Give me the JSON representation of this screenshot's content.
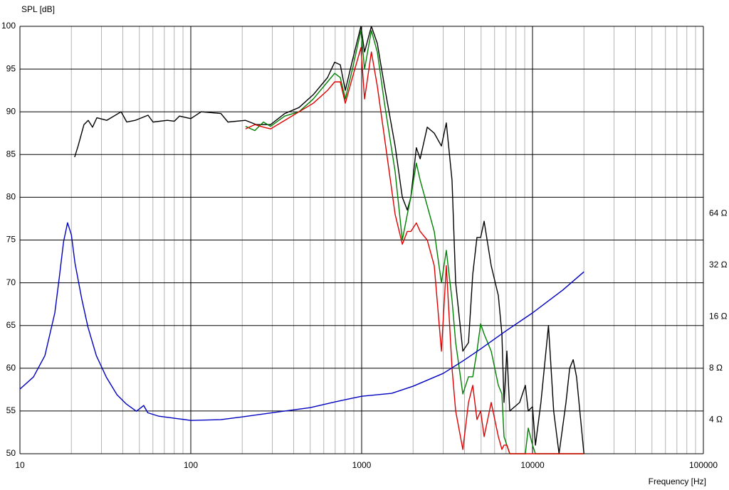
{
  "chart_data": {
    "type": "line",
    "y_label": "SPL [dB]",
    "x_label": "Frequency [Hz]",
    "xscale": "log",
    "xlim": [
      10,
      100000
    ],
    "xticks": [
      10,
      100,
      1000,
      10000,
      100000
    ],
    "ylim": [
      50,
      100
    ],
    "yticks": [
      50,
      55,
      60,
      65,
      70,
      75,
      80,
      85,
      90,
      95,
      100
    ],
    "y2scale": "log",
    "y2lim": [
      2.53,
      792
    ],
    "y2ticks": [
      {
        "value": 4,
        "label": "4 Ω"
      },
      {
        "value": 8,
        "label": "8 Ω"
      },
      {
        "value": 16,
        "label": "16 Ω"
      },
      {
        "value": 32,
        "label": "32 Ω"
      },
      {
        "value": 64,
        "label": "64 Ω"
      }
    ],
    "grid": true,
    "series": [
      {
        "color": "#000000",
        "x": [
          20.9,
          21.9,
          23.7,
          25.1,
          26.6,
          28.2,
          32.2,
          39.1,
          42.2,
          47.3,
          56.2,
          60.1,
          72.9,
          80.2,
          85.8,
          100,
          115,
          150,
          165,
          209,
          242,
          293,
          355,
          430,
          521,
          631,
          695,
          750,
          802,
          883,
          990,
          1040,
          1140,
          1235,
          1360,
          1570,
          1730,
          1850,
          1940,
          2090,
          2200,
          2420,
          2660,
          2930,
          3130,
          3380,
          3550,
          3910,
          4220,
          4470,
          4730,
          4970,
          5210,
          5730,
          6310,
          6620,
          6810,
          7080,
          7360,
          8410,
          9080,
          9440,
          10000,
          10400,
          11200,
          12400,
          13300,
          14300,
          15700,
          16500,
          17300,
          18100,
          20000
        ],
        "values": [
          84.7,
          86,
          88.5,
          89,
          88.2,
          89.3,
          89,
          90,
          88.8,
          89,
          89.6,
          88.8,
          89,
          88.9,
          89.5,
          89.2,
          90,
          89.8,
          88.8,
          89,
          88.5,
          88.5,
          89.8,
          90.5,
          92,
          94,
          95.8,
          95.5,
          92.5,
          96,
          100,
          97,
          100,
          98,
          93,
          86,
          80,
          78.5,
          80,
          85.8,
          84.5,
          88.2,
          87.5,
          86,
          88.7,
          82,
          70,
          62,
          63,
          71,
          75.3,
          75.3,
          77.2,
          72,
          68.5,
          64,
          56,
          62,
          55,
          56,
          58,
          55,
          55.5,
          51,
          56,
          65,
          55,
          50,
          56,
          60,
          61,
          59,
          50
        ]
      },
      {
        "color": "#008000",
        "x": [
          209,
          237,
          266,
          293,
          355,
          430,
          521,
          631,
          695,
          750,
          802,
          883,
          990,
          1040,
          1140,
          1235,
          1360,
          1570,
          1730,
          1850,
          1940,
          2090,
          2200,
          2420,
          2660,
          2930,
          3130,
          3380,
          3550,
          3910,
          4220,
          4470,
          4730,
          4970,
          5210,
          5730,
          6310,
          6620,
          6810,
          7080,
          7360,
          8410,
          9080,
          9440,
          10000,
          10400,
          20000
        ],
        "values": [
          88.3,
          87.8,
          88.8,
          88.3,
          89.5,
          90,
          91.5,
          93.5,
          94.5,
          94,
          91.5,
          95,
          99.5,
          95,
          99.5,
          97,
          91,
          83,
          75,
          78,
          80,
          84,
          82,
          79,
          76,
          70,
          73.8,
          68,
          63,
          57,
          59,
          59,
          62,
          65.2,
          64,
          62,
          58,
          57,
          52,
          51,
          50,
          50,
          50,
          53,
          51,
          50,
          50
        ]
      },
      {
        "color": "#e00000",
        "x": [
          209,
          237,
          266,
          293,
          355,
          430,
          521,
          631,
          695,
          750,
          802,
          883,
          990,
          1040,
          1140,
          1235,
          1360,
          1570,
          1730,
          1850,
          1940,
          2090,
          2200,
          2420,
          2660,
          2930,
          3130,
          3380,
          3550,
          3910,
          4220,
          4470,
          4730,
          4970,
          5210,
          5730,
          6310,
          6620,
          6810,
          7080,
          7360,
          8410,
          9080,
          9440,
          10000,
          10400,
          20000
        ],
        "values": [
          88,
          88.5,
          88.2,
          88,
          89,
          90,
          91,
          92.5,
          93.5,
          93.5,
          91,
          94,
          97.5,
          91.5,
          97,
          93,
          87,
          78,
          74.5,
          76,
          76,
          77,
          76,
          75,
          72,
          62,
          72,
          60,
          55,
          50.5,
          56,
          58,
          54,
          55,
          52,
          56,
          52,
          50.5,
          51,
          51,
          50,
          50,
          50,
          50,
          50,
          50,
          50
        ]
      },
      {
        "color": "#0000c0",
        "axis": "y2",
        "x": [
          10,
          12,
          14,
          16,
          17,
          18,
          19,
          20,
          21,
          23,
          25,
          28,
          32,
          37,
          42,
          48,
          50,
          53,
          56,
          65,
          80,
          100,
          150,
          200,
          300,
          500,
          700,
          800,
          1000,
          1500,
          2000,
          3000,
          4000,
          5000,
          7000,
          10000,
          15000,
          20000
        ],
        "values": [
          6.03,
          7.1,
          9.46,
          16.8,
          27.1,
          43.7,
          56.5,
          48,
          32.8,
          20.3,
          13.9,
          9.46,
          7.1,
          5.59,
          4.93,
          4.48,
          4.62,
          4.84,
          4.39,
          4.19,
          4.08,
          3.96,
          4,
          4.15,
          4.39,
          4.7,
          5.08,
          5.23,
          5.48,
          5.7,
          6.27,
          7.45,
          8.93,
          10.4,
          13.2,
          16.8,
          22.8,
          29.2
        ]
      }
    ]
  }
}
